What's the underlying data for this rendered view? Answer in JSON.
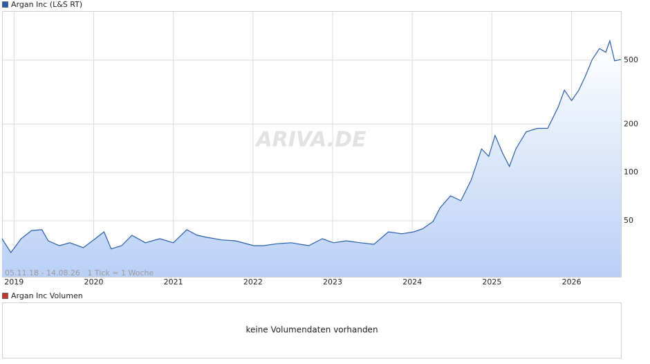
{
  "chart_data": [
    {
      "type": "line",
      "annotation": "05.11.18 - 14.08.26   1 Tick = 1 Woche",
      "watermark": "ARIVA.DE",
      "x": [
        2018.85,
        2018.96,
        2019.09,
        2019.22,
        2019.35,
        2019.43,
        2019.57,
        2019.7,
        2019.87,
        2020.02,
        2020.13,
        2020.22,
        2020.35,
        2020.48,
        2020.65,
        2020.83,
        2021.0,
        2021.17,
        2021.3,
        2021.43,
        2021.61,
        2021.78,
        2022.01,
        2022.13,
        2022.3,
        2022.48,
        2022.7,
        2022.87,
        2023.01,
        2023.17,
        2023.35,
        2023.52,
        2023.7,
        2023.87,
        2024.02,
        2024.13,
        2024.26,
        2024.35,
        2024.48,
        2024.61,
        2024.74,
        2024.87,
        2024.96,
        2025.04,
        2025.13,
        2025.22,
        2025.3,
        2025.43,
        2025.57,
        2025.7,
        2025.83,
        2025.91,
        2026.0,
        2026.09,
        2026.17,
        2026.26,
        2026.35,
        2026.43,
        2026.48,
        2026.54,
        2026.62
      ],
      "series": [
        {
          "name": "Argan Inc (L&S RT)",
          "color": "#2a5caa",
          "values": [
            38.7,
            31.7,
            38.7,
            43.5,
            44,
            37.5,
            35,
            36.5,
            34,
            38.7,
            42.7,
            33.4,
            35,
            40.6,
            36.5,
            38.7,
            36.5,
            44,
            40.6,
            39.4,
            38,
            37.5,
            35,
            35,
            36,
            36.5,
            35,
            38.7,
            36.5,
            37.5,
            36.5,
            35.7,
            42.7,
            41.5,
            42.7,
            44.6,
            49.5,
            60.3,
            71.5,
            66.7,
            89.7,
            140,
            126,
            170,
            133,
            109,
            140,
            179,
            188,
            188,
            254,
            325,
            280,
            325,
            395,
            505,
            590,
            560,
            660,
            495,
            505
          ]
        }
      ],
      "xlim": [
        2018.85,
        2026.62
      ],
      "xticks": [
        2019,
        2020,
        2021,
        2022,
        2023,
        2024,
        2025,
        2026
      ],
      "ylim": [
        22.4,
        1010
      ],
      "yticks": [
        50,
        100,
        200,
        500
      ],
      "log_scale": true,
      "grid": true
    },
    {
      "type": "bar",
      "title": "Argan Inc Volumen",
      "color": "#c0392b",
      "message": "keine Volumendaten vorhanden"
    }
  ]
}
